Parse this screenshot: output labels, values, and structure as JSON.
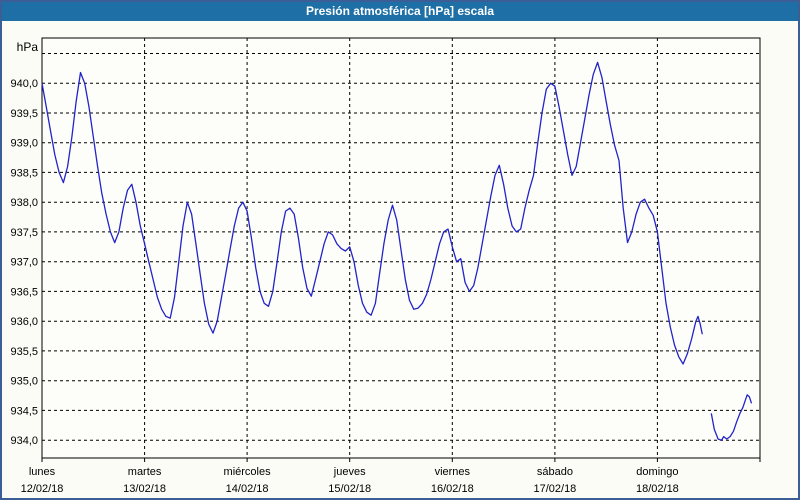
{
  "window": {
    "title": "Presión atmosférica [hPa] escala"
  },
  "colors": {
    "titlebar_bg": "#1d6fa5",
    "titlebar_text": "#ffffff",
    "frame_border": "#3b5e97",
    "background": "#fbfcf5",
    "plot_bg": "#fdfefa",
    "grid": "#000000",
    "axis": "#000000",
    "line": "#2323c8",
    "text": "#000000"
  },
  "chart_data": {
    "type": "line",
    "title": "Presión atmosférica [hPa] escala",
    "ylabel": "hPa",
    "xlabel": "",
    "grid": "dashed",
    "legend_position": "none",
    "ylim": [
      933.7,
      940.76
    ],
    "xlim_hours": [
      0,
      168
    ],
    "y_gridlines": [
      940.5,
      940.0,
      939.5,
      939.0,
      938.5,
      938.0,
      937.5,
      937.0,
      936.5,
      936.0,
      935.5,
      935.0,
      934.5,
      934.0
    ],
    "y_ticks": [
      {
        "value": 940.0,
        "label": "940,0"
      },
      {
        "value": 939.5,
        "label": "939,5"
      },
      {
        "value": 939.0,
        "label": "939,0"
      },
      {
        "value": 938.5,
        "label": "938,5"
      },
      {
        "value": 938.0,
        "label": "938,0"
      },
      {
        "value": 937.5,
        "label": "937,5"
      },
      {
        "value": 937.0,
        "label": "937,0"
      },
      {
        "value": 936.5,
        "label": "936,5"
      },
      {
        "value": 936.0,
        "label": "936,0"
      },
      {
        "value": 935.5,
        "label": "935,5"
      },
      {
        "value": 935.0,
        "label": "935,0"
      },
      {
        "value": 934.5,
        "label": "934,5"
      },
      {
        "value": 934.0,
        "label": "934,0"
      }
    ],
    "x_ticks": [
      {
        "hour": 0,
        "day": "lunes",
        "date": "12/02/18"
      },
      {
        "hour": 24,
        "day": "martes",
        "date": "13/02/18"
      },
      {
        "hour": 48,
        "day": "miércoles",
        "date": "14/02/18"
      },
      {
        "hour": 72,
        "day": "jueves",
        "date": "15/02/18"
      },
      {
        "hour": 96,
        "day": "viernes",
        "date": "16/02/18"
      },
      {
        "hour": 120,
        "day": "sábado",
        "date": "17/02/18"
      },
      {
        "hour": 144,
        "day": "domingo",
        "date": "18/02/18"
      }
    ],
    "series": [
      {
        "name": "segment-1",
        "points": [
          [
            0,
            940.0
          ],
          [
            1,
            939.6
          ],
          [
            2,
            939.2
          ],
          [
            3,
            938.8
          ],
          [
            4,
            938.5
          ],
          [
            5,
            938.33
          ],
          [
            6,
            938.6
          ],
          [
            7,
            939.1
          ],
          [
            8,
            939.7
          ],
          [
            9,
            940.18
          ],
          [
            10,
            940.0
          ],
          [
            11,
            939.6
          ],
          [
            12,
            939.1
          ],
          [
            13,
            938.6
          ],
          [
            14,
            938.15
          ],
          [
            15,
            937.8
          ],
          [
            16,
            937.5
          ],
          [
            17,
            937.32
          ],
          [
            18,
            937.5
          ],
          [
            19,
            937.9
          ],
          [
            20,
            938.2
          ],
          [
            21,
            938.3
          ],
          [
            22,
            938.0
          ],
          [
            23,
            937.6
          ],
          [
            24,
            937.3
          ],
          [
            25,
            937.0
          ],
          [
            26,
            936.7
          ],
          [
            27,
            936.4
          ],
          [
            28,
            936.2
          ],
          [
            29,
            936.08
          ],
          [
            30,
            936.05
          ],
          [
            31,
            936.4
          ],
          [
            32,
            937.0
          ],
          [
            33,
            937.6
          ],
          [
            34,
            938.0
          ],
          [
            35,
            937.8
          ],
          [
            36,
            937.3
          ],
          [
            37,
            936.8
          ],
          [
            38,
            936.3
          ],
          [
            39,
            935.95
          ],
          [
            40,
            935.8
          ],
          [
            41,
            936.0
          ],
          [
            42,
            936.4
          ],
          [
            43,
            936.8
          ],
          [
            44,
            937.2
          ],
          [
            45,
            937.6
          ],
          [
            46,
            937.9
          ],
          [
            47,
            938.0
          ],
          [
            48,
            937.85
          ],
          [
            49,
            937.4
          ],
          [
            50,
            936.9
          ],
          [
            51,
            936.5
          ],
          [
            52,
            936.3
          ],
          [
            53,
            936.25
          ],
          [
            54,
            936.5
          ],
          [
            55,
            937.0
          ],
          [
            56,
            937.5
          ],
          [
            57,
            937.85
          ],
          [
            58,
            937.9
          ],
          [
            59,
            937.8
          ],
          [
            60,
            937.4
          ],
          [
            61,
            936.9
          ],
          [
            62,
            936.55
          ],
          [
            63,
            936.42
          ],
          [
            64,
            936.7
          ],
          [
            65,
            937.0
          ],
          [
            66,
            937.3
          ],
          [
            67,
            937.5
          ],
          [
            68,
            937.45
          ],
          [
            69,
            937.3
          ],
          [
            70,
            937.22
          ],
          [
            71,
            937.18
          ],
          [
            72,
            937.25
          ],
          [
            73,
            937.0
          ],
          [
            74,
            936.6
          ],
          [
            75,
            936.3
          ],
          [
            76,
            936.15
          ],
          [
            77,
            936.1
          ],
          [
            78,
            936.3
          ],
          [
            79,
            936.8
          ],
          [
            80,
            937.3
          ],
          [
            81,
            937.7
          ],
          [
            82,
            937.95
          ],
          [
            83,
            937.7
          ],
          [
            84,
            937.2
          ],
          [
            85,
            936.7
          ],
          [
            86,
            936.35
          ],
          [
            87,
            936.2
          ],
          [
            88,
            936.22
          ],
          [
            89,
            936.3
          ],
          [
            90,
            936.45
          ],
          [
            91,
            936.7
          ],
          [
            92,
            937.0
          ],
          [
            93,
            937.3
          ],
          [
            94,
            937.5
          ],
          [
            95,
            937.55
          ],
          [
            96,
            937.25
          ],
          [
            97,
            937.0
          ],
          [
            98,
            937.05
          ],
          [
            99,
            936.65
          ],
          [
            100,
            936.5
          ],
          [
            101,
            936.6
          ],
          [
            102,
            936.9
          ],
          [
            103,
            937.3
          ],
          [
            104,
            937.7
          ],
          [
            105,
            938.1
          ],
          [
            106,
            938.45
          ],
          [
            107,
            938.62
          ],
          [
            108,
            938.3
          ],
          [
            109,
            937.9
          ],
          [
            110,
            937.6
          ],
          [
            111,
            937.5
          ],
          [
            112,
            937.55
          ],
          [
            113,
            937.9
          ],
          [
            114,
            938.2
          ],
          [
            115,
            938.45
          ],
          [
            116,
            939.0
          ],
          [
            117,
            939.5
          ],
          [
            118,
            939.9
          ],
          [
            119,
            940.0
          ],
          [
            120,
            939.95
          ],
          [
            121,
            939.6
          ],
          [
            122,
            939.2
          ],
          [
            123,
            938.8
          ],
          [
            124,
            938.45
          ],
          [
            125,
            938.6
          ],
          [
            126,
            939.0
          ],
          [
            127,
            939.4
          ],
          [
            128,
            939.8
          ],
          [
            129,
            940.15
          ],
          [
            130,
            940.35
          ],
          [
            131,
            940.1
          ],
          [
            132,
            939.7
          ],
          [
            133,
            939.3
          ],
          [
            134,
            938.95
          ],
          [
            135,
            938.7
          ],
          [
            136,
            937.9
          ],
          [
            137,
            937.32
          ],
          [
            138,
            937.5
          ],
          [
            139,
            937.8
          ],
          [
            140,
            938.0
          ],
          [
            141,
            938.05
          ],
          [
            142,
            937.9
          ],
          [
            143,
            937.78
          ],
          [
            144,
            937.5
          ],
          [
            145,
            936.9
          ],
          [
            146,
            936.3
          ],
          [
            147,
            935.9
          ],
          [
            148,
            935.6
          ],
          [
            149,
            935.4
          ],
          [
            150,
            935.28
          ],
          [
            151,
            935.45
          ],
          [
            152,
            935.7
          ],
          [
            153,
            936.0
          ],
          [
            153.5,
            936.08
          ],
          [
            154,
            935.95
          ],
          [
            154.5,
            935.78
          ]
        ]
      },
      {
        "name": "segment-2",
        "points": [
          [
            156.6,
            934.45
          ],
          [
            157.3,
            934.18
          ],
          [
            158.2,
            934.02
          ],
          [
            159,
            934.0
          ],
          [
            159.5,
            934.06
          ],
          [
            160.2,
            934.02
          ],
          [
            161,
            934.06
          ],
          [
            161.8,
            934.15
          ],
          [
            162.5,
            934.3
          ],
          [
            163.3,
            934.45
          ],
          [
            164,
            934.55
          ],
          [
            164.6,
            934.68
          ],
          [
            165,
            934.76
          ],
          [
            165.5,
            934.73
          ],
          [
            166,
            934.62
          ]
        ]
      }
    ]
  }
}
